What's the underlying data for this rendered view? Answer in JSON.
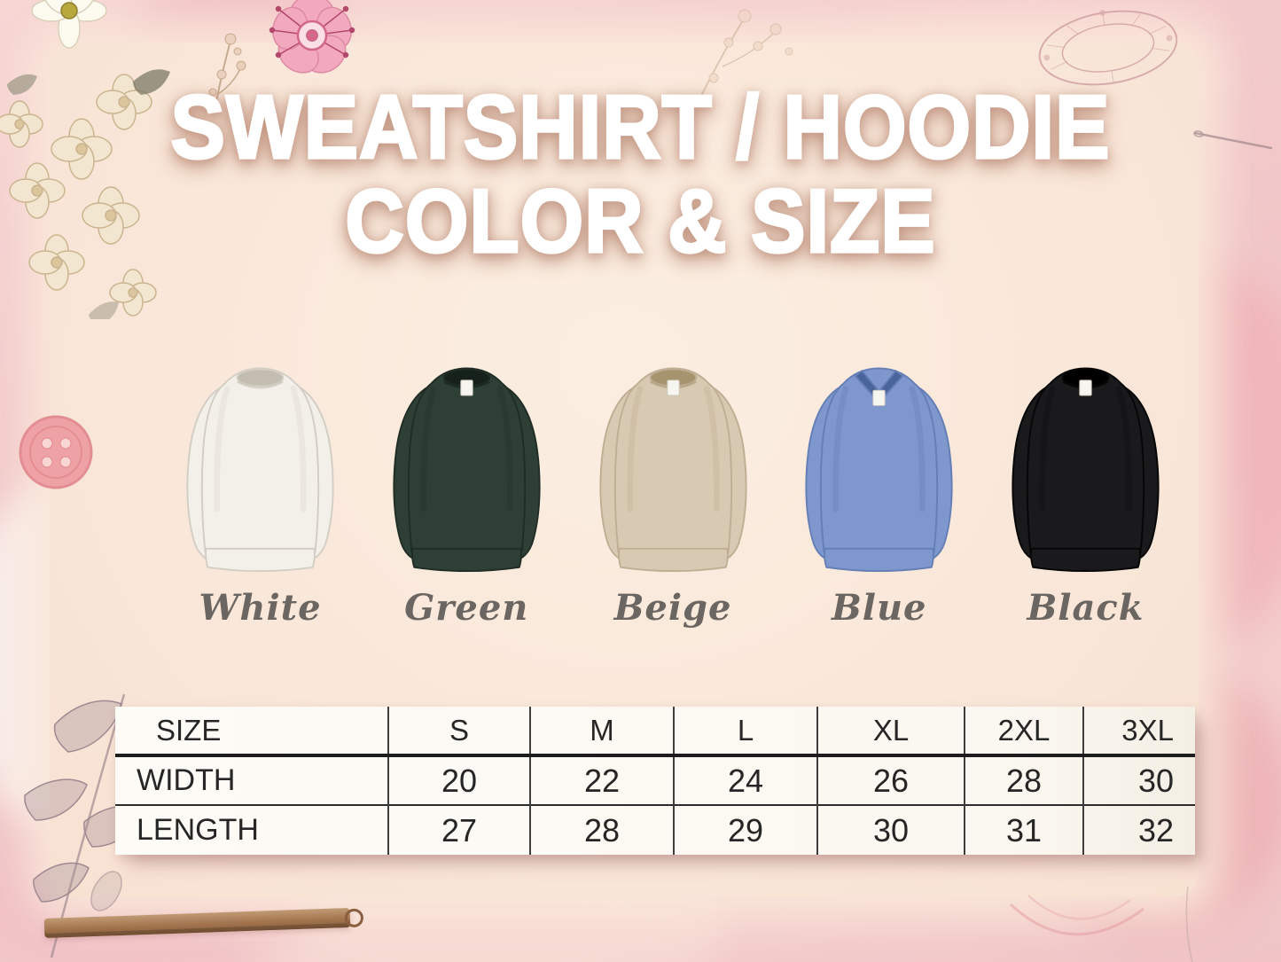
{
  "title": {
    "line1": "SWEATSHIRT / HOODIE",
    "line2": "COLOR & SIZE"
  },
  "products": [
    {
      "label": "White",
      "color": "#f3f0ea",
      "edge": "#d3cec4",
      "dark": "#c3bcb0",
      "neck": "crew",
      "tag": false
    },
    {
      "label": "Green",
      "color": "#2e4036",
      "edge": "#1f2d25",
      "dark": "#15211a",
      "neck": "crew",
      "tag": true
    },
    {
      "label": "Beige",
      "color": "#d8c9b2",
      "edge": "#bfae93",
      "dark": "#a6946f",
      "neck": "crew",
      "tag": true
    },
    {
      "label": "Blue",
      "color": "#7e97cc",
      "edge": "#647eb6",
      "dark": "#49639b",
      "neck": "v",
      "tag": true
    },
    {
      "label": "Black",
      "color": "#1a1a1c",
      "edge": "#060607",
      "dark": "#000000",
      "neck": "crew",
      "tag": true
    }
  ],
  "chart_data": {
    "type": "table",
    "columns": [
      "SIZE",
      "S",
      "M",
      "L",
      "XL",
      "2XL",
      "3XL"
    ],
    "rows": [
      {
        "label": "WIDTH",
        "values": [
          "20",
          "22",
          "24",
          "26",
          "28",
          "30"
        ]
      },
      {
        "label": "LENGTH",
        "values": [
          "27",
          "28",
          "29",
          "30",
          "31",
          "32"
        ]
      }
    ]
  },
  "colors": {
    "background_pink": "#f2c9ca",
    "panel_peach": "#f9e7d9",
    "title_white": "#ffffff",
    "label_gray": "#6b6661",
    "table_ink": "#272727",
    "table_bg": "#fcfaf4"
  },
  "decorations": [
    "floral-top-left",
    "pink-blossom",
    "clothing-button",
    "leaf-sketch",
    "wooden-ruler",
    "brooch-sketch",
    "needle-sketch",
    "stitch-arcs"
  ]
}
